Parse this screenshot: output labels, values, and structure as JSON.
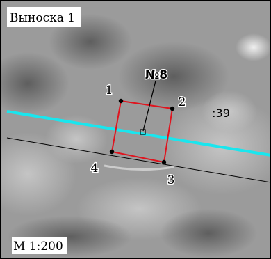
{
  "callout_title": "Выноска 1",
  "scale_label": "М 1:200",
  "plot_label": "№8",
  "parcel_label": ":39",
  "vertices": [
    {
      "label": "1"
    },
    {
      "label": "2"
    },
    {
      "label": "3"
    },
    {
      "label": "4"
    }
  ],
  "colors": {
    "boundary_red": "#e0141e",
    "cyan_line": "#19e6ee",
    "black_line": "#000000",
    "frame": "#000000"
  }
}
